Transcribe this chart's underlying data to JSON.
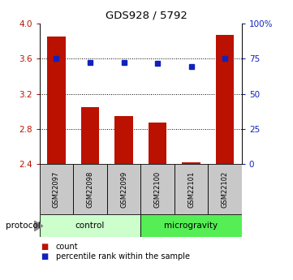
{
  "title": "GDS928 / 5792",
  "samples": [
    "GSM22097",
    "GSM22098",
    "GSM22099",
    "GSM22100",
    "GSM22101",
    "GSM22102"
  ],
  "red_values": [
    3.85,
    3.05,
    2.95,
    2.87,
    2.42,
    3.87
  ],
  "blue_values": [
    3.605,
    3.555,
    3.555,
    3.545,
    3.515,
    3.605
  ],
  "ylim_left": [
    2.4,
    4.0
  ],
  "ylim_right": [
    0,
    100
  ],
  "yticks_left": [
    2.4,
    2.8,
    3.2,
    3.6,
    4.0
  ],
  "yticks_right": [
    0,
    25,
    50,
    75,
    100
  ],
  "ytick_labels_right": [
    "0",
    "25",
    "50",
    "75",
    "100%"
  ],
  "bar_color": "#bb1100",
  "dot_color": "#1122bb",
  "baseline": 2.4,
  "groups": [
    {
      "label": "control",
      "start": 0,
      "end": 3,
      "color": "#ccffcc"
    },
    {
      "label": "microgravity",
      "start": 3,
      "end": 6,
      "color": "#55ee55"
    }
  ],
  "protocol_label": "protocol",
  "sample_box_color": "#c8c8c8",
  "dotted_lines": [
    2.8,
    3.2,
    3.6
  ],
  "bar_width": 0.55
}
